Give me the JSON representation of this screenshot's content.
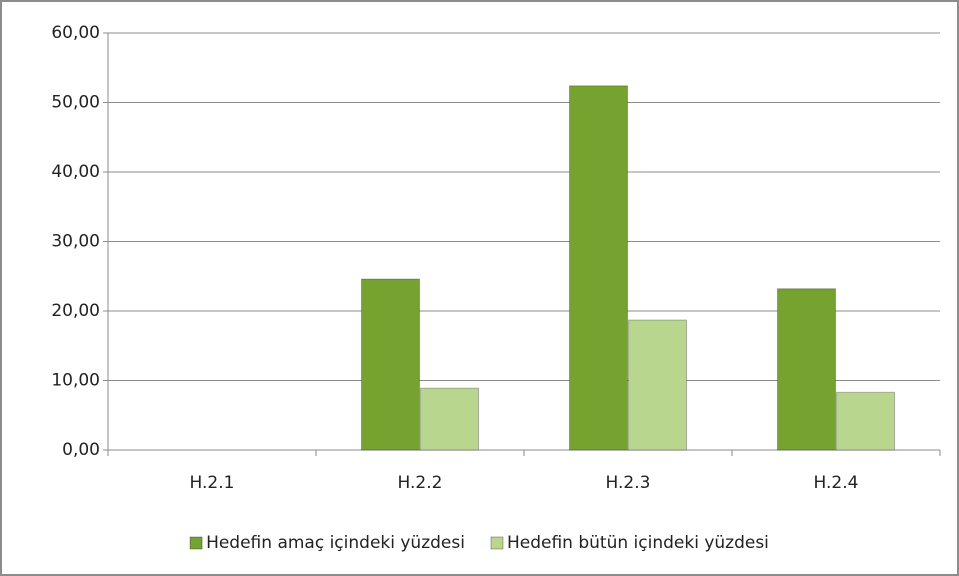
{
  "chart_data": {
    "type": "bar",
    "categories": [
      "H.2.1",
      "H.2.2",
      "H.2.3",
      "H.2.4"
    ],
    "series": [
      {
        "name": "Hedefin amaç içindeki yüzdesi",
        "color": "#76a32f",
        "values": [
          0,
          24.6,
          52.4,
          23.2
        ]
      },
      {
        "name": "Hedefin bütün içindeki yüzdesi",
        "color": "#b9d68f",
        "values": [
          0,
          8.9,
          18.7,
          8.3
        ]
      }
    ],
    "ylim": [
      0,
      60
    ],
    "yticks": [
      {
        "value": 0,
        "label": "0,00"
      },
      {
        "value": 10,
        "label": "10,00"
      },
      {
        "value": 20,
        "label": "20,00"
      },
      {
        "value": 30,
        "label": "30,00"
      },
      {
        "value": 40,
        "label": "40,00"
      },
      {
        "value": 50,
        "label": "50,00"
      },
      {
        "value": 60,
        "label": "60,00"
      }
    ],
    "grid": true,
    "legend": "bottom"
  }
}
